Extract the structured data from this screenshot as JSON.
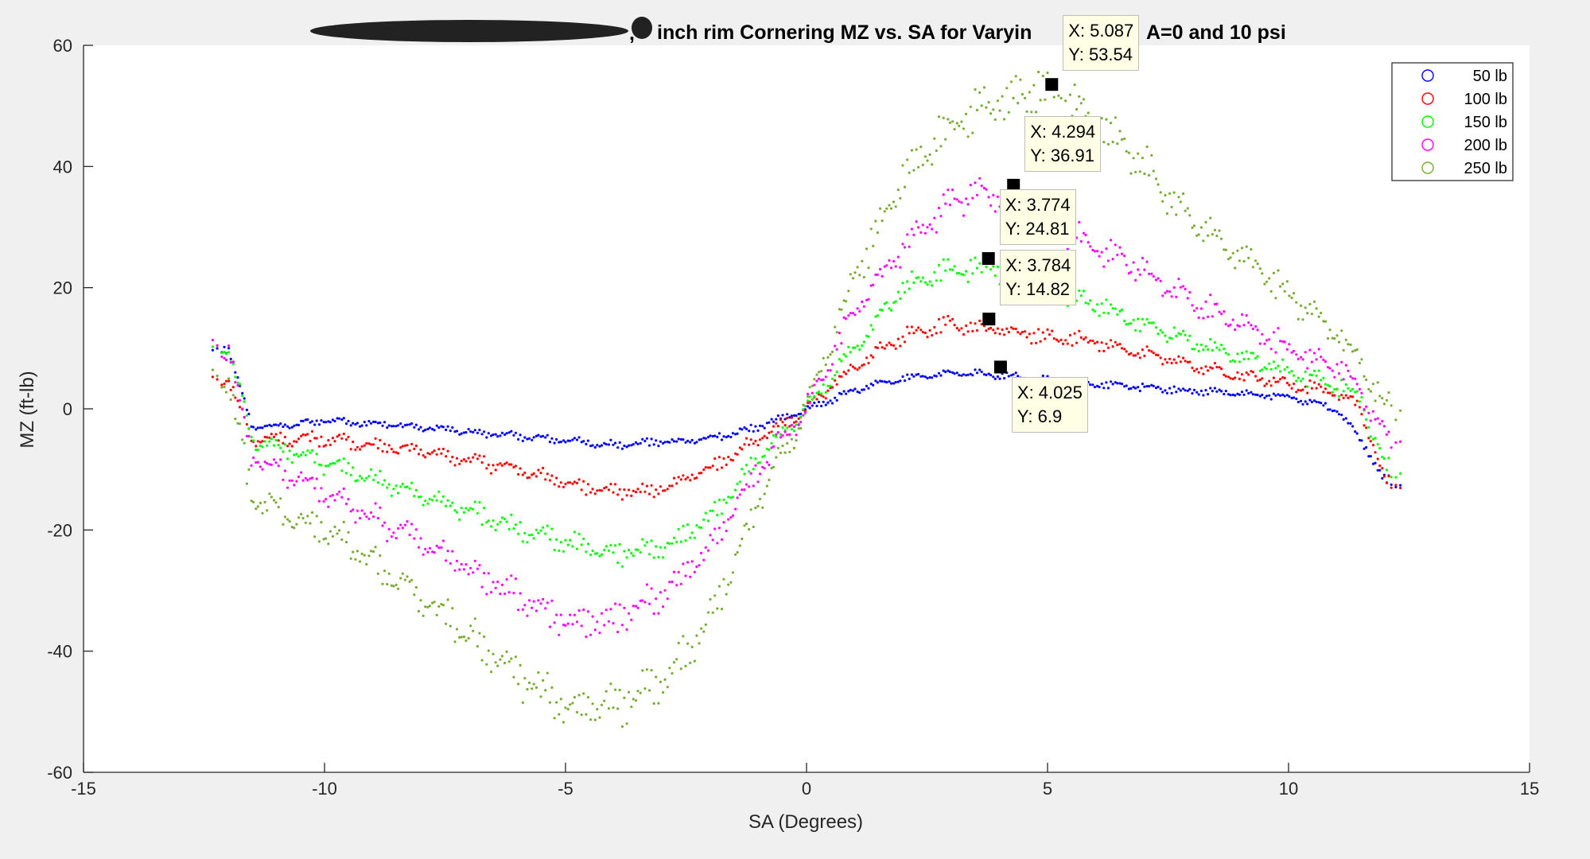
{
  "chart_data": {
    "type": "scatter",
    "title_parts": [
      "inch rim Cornering MZ vs. SA for Varyin",
      "A=0 and 10 psi"
    ],
    "xlabel": "SA (Degrees)",
    "ylabel": "MZ (ft-lb)",
    "xlim": [
      -15,
      15
    ],
    "ylim": [
      -60,
      60
    ],
    "xticks": [
      -15,
      -10,
      -5,
      0,
      5,
      10,
      15
    ],
    "yticks": [
      -60,
      -40,
      -20,
      0,
      20,
      40,
      60
    ],
    "xtick_labels": [
      "-15",
      "-10",
      "-5",
      "0",
      "5",
      "10",
      "15"
    ],
    "ytick_labels": [
      "-60",
      "-40",
      "-20",
      "0",
      "20",
      "40",
      "60"
    ],
    "legend_placement": "top-right",
    "grid": false,
    "series": [
      {
        "name": "50 lb",
        "color": "#0000ff",
        "x": [
          -12,
          -11.5,
          -11,
          -10,
          -8,
          -6,
          -4,
          -2,
          -1,
          0,
          1,
          2,
          3,
          4,
          6,
          8,
          10,
          11,
          11.5,
          12
        ],
        "y": [
          10,
          -3,
          -3,
          -2,
          -3,
          -4.5,
          -6,
          -5,
          -3,
          0,
          3,
          5,
          6,
          5.5,
          4,
          3,
          2,
          0,
          -5,
          -12
        ]
      },
      {
        "name": "100 lb",
        "color": "#ff0000",
        "x": [
          -12,
          -11.5,
          -10,
          -8,
          -6,
          -4,
          -3,
          -2,
          -1,
          0,
          1,
          2,
          3,
          4,
          6,
          8,
          10,
          11,
          11.5,
          12
        ],
        "y": [
          5,
          -5,
          -5,
          -7,
          -10,
          -14,
          -13,
          -10,
          -5,
          0,
          7,
          12,
          14,
          13,
          11,
          7,
          4,
          3,
          0,
          -12
        ]
      },
      {
        "name": "150 lb",
        "color": "#00ff00",
        "x": [
          -12,
          -11.5,
          -10,
          -8,
          -6,
          -4,
          -3,
          -2,
          -1,
          0,
          1,
          2,
          3,
          4,
          5,
          6,
          8,
          10,
          11,
          11.5,
          12
        ],
        "y": [
          10,
          -5,
          -9,
          -14,
          -20,
          -24,
          -23,
          -18,
          -8,
          0,
          10,
          20,
          23,
          23,
          20,
          17,
          11,
          6,
          4,
          2,
          -10
        ]
      },
      {
        "name": "200 lb",
        "color": "#ff00ff",
        "x": [
          -12,
          -11.5,
          -10,
          -8,
          -6,
          -5,
          -4,
          -3,
          -2,
          -1,
          0,
          1,
          2,
          3,
          3.5,
          4,
          5,
          6,
          8,
          10,
          11,
          11.5,
          12
        ],
        "y": [
          10,
          -8,
          -14,
          -22,
          -31,
          -35,
          -35,
          -31,
          -23,
          -10,
          0,
          16,
          27,
          34,
          36,
          35,
          31,
          27,
          18,
          10,
          7,
          3,
          -5
        ]
      },
      {
        "name": "250 lb",
        "color": "#77ac30",
        "x": [
          -12,
          -11.5,
          -10,
          -8,
          -6,
          -5,
          -4,
          -3,
          -2,
          -1,
          0,
          1,
          2,
          3,
          4,
          5,
          6,
          7,
          8,
          10,
          11,
          11.5,
          12
        ],
        "y": [
          5,
          -15,
          -20,
          -31,
          -44,
          -49,
          -49,
          -45,
          -35,
          -15,
          0,
          22,
          38,
          47,
          51,
          53,
          48,
          40,
          31,
          19,
          12,
          8,
          0
        ]
      }
    ],
    "datatips": [
      {
        "x": 5.087,
        "y": 53.54,
        "x_label": "X: 5.087",
        "y_label": "Y: 53.54"
      },
      {
        "x": 4.294,
        "y": 36.91,
        "x_label": "X: 4.294",
        "y_label": "Y: 36.91"
      },
      {
        "x": 3.774,
        "y": 24.81,
        "x_label": "X: 3.774",
        "y_label": "Y: 24.81"
      },
      {
        "x": 3.784,
        "y": 14.82,
        "x_label": "X: 3.784",
        "y_label": "Y: 14.82"
      },
      {
        "x": 4.025,
        "y": 6.9,
        "x_label": "X: 4.025",
        "y_label": "Y: 6.9"
      }
    ]
  }
}
